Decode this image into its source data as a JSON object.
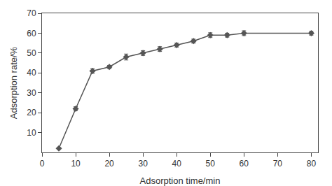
{
  "chart_data": {
    "type": "line",
    "x": [
      5,
      10,
      15,
      20,
      25,
      30,
      35,
      40,
      45,
      50,
      55,
      60,
      80
    ],
    "values": [
      2,
      22,
      41,
      43,
      48,
      50,
      52,
      54,
      56,
      59,
      59,
      60,
      60
    ],
    "yerr": [
      0.3,
      1.0,
      1.2,
      0.8,
      1.5,
      1.2,
      1.2,
      1.0,
      1.0,
      1.2,
      1.0,
      1.2,
      1.0
    ],
    "xlabel": "Adsorption time/min",
    "ylabel": "Adsorption rate/%",
    "xlim": [
      0,
      82
    ],
    "ylim": [
      0,
      70
    ],
    "xticks": [
      0,
      10,
      20,
      30,
      40,
      50,
      60,
      70,
      80
    ],
    "yticks": [
      10,
      20,
      30,
      40,
      50,
      60,
      70
    ],
    "color": "#555555",
    "marker": "diamond",
    "line_style": "solid",
    "grid": false
  }
}
